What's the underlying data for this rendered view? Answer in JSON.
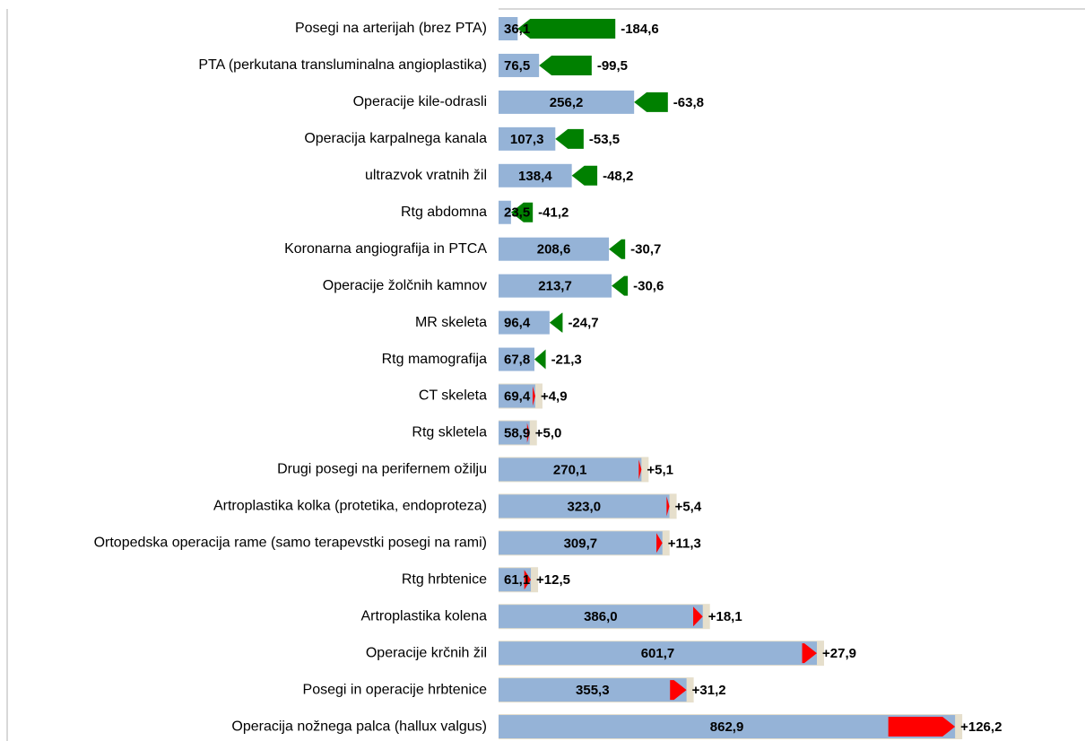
{
  "chart_data": {
    "type": "bar-change",
    "categories": [
      "Posegi na arterijah (brez PTA)",
      "PTA (perkutana transluminalna angioplastika)",
      "Operacije kile-odrasli",
      "Operacija karpalnega kanala",
      "ultrazvok vratnih žil",
      "Rtg abdomna",
      "Koronarna angiografija in PTCA",
      "Operacije žolčnih kamnov",
      "MR skeleta",
      "Rtg mamografija",
      "CT skeleta",
      "Rtg skletela",
      "Drugi posegi na perifernem ožilju",
      "Artroplastika kolka (protetika, endoproteza)",
      "Ortopedska operacija rame (samo terapevstki posegi na rami)",
      "Rtg hrbtenice",
      "Artroplastika kolena",
      "Operacije krčnih žil",
      "Posegi in operacije hrbtenice",
      "Operacija nožnega palca (hallux valgus)"
    ],
    "values": [
      36.1,
      76.5,
      256.2,
      107.3,
      138.4,
      23.5,
      208.6,
      213.7,
      96.4,
      67.8,
      69.4,
      58.9,
      270.1,
      323.0,
      309.7,
      61.1,
      386.0,
      601.7,
      355.3,
      862.9
    ],
    "value_labels": [
      "36,1",
      "76,5",
      "256,2",
      "107,3",
      "138,4",
      "23,5",
      "208,6",
      "213,7",
      "96,4",
      "67,8",
      "69,4",
      "58,9",
      "270,1",
      "323,0",
      "309,7",
      "61,1",
      "386,0",
      "601,7",
      "355,3",
      "862,9"
    ],
    "color": "#95b3d7",
    "changes": [
      -184.6,
      -99.5,
      -63.8,
      -53.5,
      -48.2,
      -41.2,
      -30.7,
      -30.6,
      -24.7,
      -21.3,
      4.9,
      5.0,
      5.1,
      5.4,
      11.3,
      12.5,
      18.1,
      27.9,
      31.2,
      126.2
    ],
    "change_labels": [
      "-184,6",
      "-99,5",
      "-63,8",
      "-53,5",
      "-48,2",
      "-41,2",
      "-30,7",
      "-30,6",
      "-24,7",
      "-21,3",
      "+4,9",
      "+5,0",
      "+5,1",
      "+5,4",
      "+11,3",
      "+12,5",
      "+18,1",
      "+27,9",
      "+31,2",
      "+126,2"
    ],
    "decrease_color": "#008000",
    "increase_color": "#ff0000",
    "xlim": [
      0,
      1000
    ]
  }
}
